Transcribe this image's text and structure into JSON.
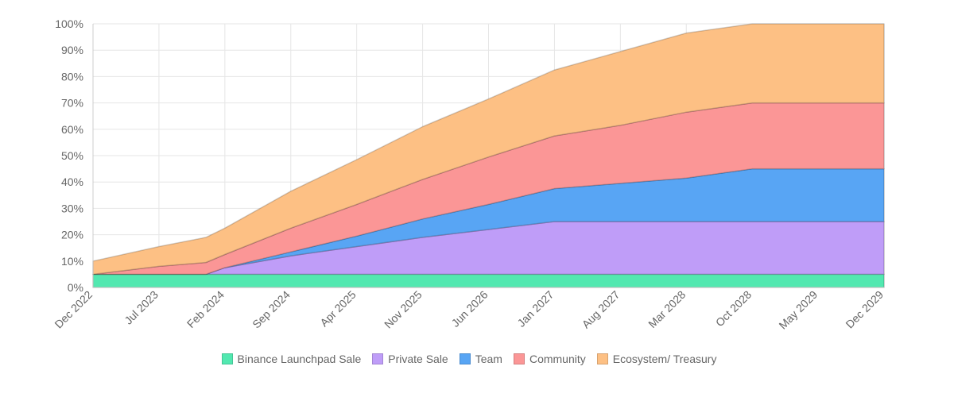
{
  "chart_data": {
    "type": "area",
    "stacked": true,
    "x": [
      "Dec 2022",
      "Jul 2023",
      "Feb 2024",
      "Sep 2024",
      "Apr 2025",
      "Nov 2025",
      "Jun 2026",
      "Jan 2027",
      "Aug 2027",
      "Mar 2028",
      "Oct 2028",
      "May 2029",
      "Dec 2029"
    ],
    "x_tick_labels": [
      "Dec 2022",
      "Jul 2023",
      "Feb 2024",
      "Sep 2024",
      "Apr 2025",
      "Nov 2025",
      "Jun 2026",
      "Jan 2027",
      "Aug 2027",
      "Mar 2028",
      "Oct 2028",
      "May 2029",
      "Dec 2029"
    ],
    "y_ticks": [
      "0%",
      "10%",
      "20%",
      "30%",
      "40%",
      "50%",
      "60%",
      "70%",
      "80%",
      "90%",
      "100%"
    ],
    "ylim": [
      0,
      100
    ],
    "grid": true,
    "legend_position": "bottom",
    "series": [
      {
        "name": "Binance Launchpad Sale",
        "color": "#52e8b0",
        "points": [
          [
            "Dec 2022",
            5
          ],
          [
            "Jul 2023",
            5
          ],
          [
            "Feb 2024",
            5
          ],
          [
            "Sep 2024",
            5
          ],
          [
            "Apr 2025",
            5
          ],
          [
            "Nov 2025",
            5
          ],
          [
            "Jun 2026",
            5
          ],
          [
            "Jan 2027",
            5
          ],
          [
            "Aug 2027",
            5
          ],
          [
            "Mar 2028",
            5
          ],
          [
            "Oct 2028",
            5
          ],
          [
            "May 2029",
            5
          ],
          [
            "Dec 2029",
            5
          ]
        ]
      },
      {
        "name": "Private Sale",
        "color": "#bf9df8",
        "points": [
          [
            "Dec 2022",
            0
          ],
          [
            "Jul 2023",
            0
          ],
          [
            "Dec 2023",
            0
          ],
          [
            "Feb 2024",
            2.5
          ],
          [
            "Sep 2024",
            7
          ],
          [
            "Apr 2025",
            10.5
          ],
          [
            "Nov 2025",
            14
          ],
          [
            "Jun 2026",
            17
          ],
          [
            "Jan 2027",
            20
          ],
          [
            "Aug 2027",
            20
          ],
          [
            "Mar 2028",
            20
          ],
          [
            "Oct 2028",
            20
          ],
          [
            "May 2029",
            20
          ],
          [
            "Dec 2029",
            20
          ]
        ]
      },
      {
        "name": "Team",
        "color": "#58a5f4",
        "points": [
          [
            "Dec 2022",
            0
          ],
          [
            "Jul 2023",
            0
          ],
          [
            "Feb 2024",
            0
          ],
          [
            "Sep 2024",
            1.5
          ],
          [
            "Apr 2025",
            4
          ],
          [
            "Nov 2025",
            7
          ],
          [
            "Jun 2026",
            9.5
          ],
          [
            "Jan 2027",
            12.5
          ],
          [
            "Aug 2027",
            14.5
          ],
          [
            "Mar 2028",
            16.5
          ],
          [
            "Oct 2028",
            20
          ],
          [
            "May 2029",
            20
          ],
          [
            "Dec 2029",
            20
          ]
        ]
      },
      {
        "name": "Community",
        "color": "#fb9696",
        "points": [
          [
            "Dec 2022",
            0
          ],
          [
            "Jul 2023",
            3
          ],
          [
            "Dec 2023",
            4.5
          ],
          [
            "Feb 2024",
            5
          ],
          [
            "Sep 2024",
            9
          ],
          [
            "Apr 2025",
            12
          ],
          [
            "Nov 2025",
            15
          ],
          [
            "Jun 2026",
            18
          ],
          [
            "Jan 2027",
            20
          ],
          [
            "Aug 2027",
            22
          ],
          [
            "Mar 2028",
            25
          ],
          [
            "Oct 2028",
            25
          ],
          [
            "May 2029",
            25
          ],
          [
            "Dec 2029",
            25
          ]
        ]
      },
      {
        "name": "Ecosystem/ Treasury",
        "color": "#fdc084",
        "points": [
          [
            "Dec 2022",
            5
          ],
          [
            "Jul 2023",
            7.5
          ],
          [
            "Dec 2023",
            9.5
          ],
          [
            "Feb 2024",
            10
          ],
          [
            "Sep 2024",
            14
          ],
          [
            "Apr 2025",
            17
          ],
          [
            "Nov 2025",
            20
          ],
          [
            "Jun 2026",
            22
          ],
          [
            "Jan 2027",
            25
          ],
          [
            "Aug 2027",
            28
          ],
          [
            "Mar 2028",
            30
          ],
          [
            "Oct 2028",
            30
          ],
          [
            "May 2029",
            30
          ],
          [
            "Dec 2029",
            30
          ]
        ]
      }
    ]
  }
}
